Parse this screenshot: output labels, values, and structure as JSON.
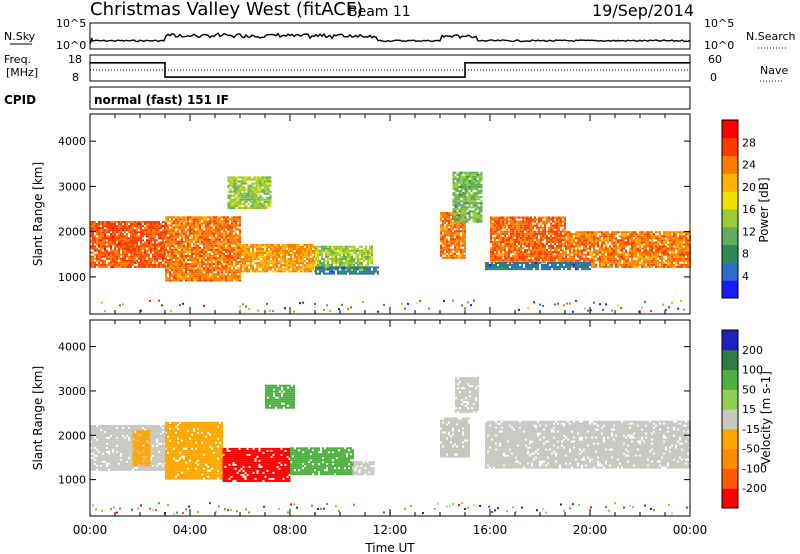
{
  "header": {
    "title": "Christmas Valley West (fitACF)",
    "beam": "Beam 11",
    "date": "19/Sep/2014"
  },
  "scan": {
    "nsky_label": "N.Sky",
    "nsky_top": "10^5",
    "nsky_bottom": "10^0",
    "nsearch_label": "N.Search",
    "nsearch_top": "10^5",
    "nsearch_bottom": "10^0",
    "freq_label": "Freq.",
    "freq_unit": "[MHz]",
    "freq_top": "18",
    "freq_bottom": "8",
    "nave_label": "Nave",
    "nave_top": "60",
    "nave_bottom": "0",
    "cpid_label": "CPID",
    "cpid_value": "normal (fast) 151 IF"
  },
  "colors": {
    "power_scale": [
      "#1a1aff",
      "#2d6cc8",
      "#2e8b57",
      "#5fae5f",
      "#9acd32",
      "#f0e000",
      "#ffb000",
      "#ff7b00",
      "#ff3a00",
      "#ff0000"
    ],
    "velocity_scale": [
      "#2020c0",
      "#2f7a45",
      "#4caf3f",
      "#8fd050",
      "#c8c8c0",
      "#ffa500",
      "#ff8c00",
      "#ff5a00",
      "#ff0000"
    ]
  },
  "chart_data": [
    {
      "type": "line",
      "name": "scan-parameters",
      "x": [
        0,
        3,
        3,
        15,
        15,
        24
      ],
      "series": [
        {
          "values": [
            15,
            15,
            9.5,
            9.5,
            15,
            15
          ]
        }
      ],
      "xlim": [
        0,
        24
      ]
    },
    {
      "type": "heatmap",
      "name": "power",
      "xlabel": "",
      "ylabel": "Slant Range [km]",
      "xlim": [
        0,
        24
      ],
      "ylim": [
        180,
        4600
      ],
      "yticks": [
        "1000",
        "2000",
        "3000",
        "4000"
      ],
      "colorbar_label": "Power [dB]",
      "colorbar_ticks": [
        "4",
        "8",
        "12",
        "16",
        "20",
        "24",
        "28"
      ],
      "bands": [
        {
          "x0": 0.0,
          "x1": 3.0,
          "y0": 1200,
          "y1": 2200,
          "value": 26
        },
        {
          "x0": 3.0,
          "x1": 6.0,
          "y0": 900,
          "y1": 2300,
          "value": 24
        },
        {
          "x0": 6.0,
          "x1": 9.0,
          "y0": 1100,
          "y1": 1700,
          "value": 22
        },
        {
          "x0": 9.0,
          "x1": 11.3,
          "y0": 1150,
          "y1": 1650,
          "value": 14
        },
        {
          "x0": 14.0,
          "x1": 15.0,
          "y0": 1400,
          "y1": 2400,
          "value": 24
        },
        {
          "x0": 16.0,
          "x1": 19.0,
          "y0": 1300,
          "y1": 2300,
          "value": 25
        },
        {
          "x0": 19.0,
          "x1": 24.0,
          "y0": 1200,
          "y1": 2000,
          "value": 24
        },
        {
          "x0": 5.5,
          "x1": 7.2,
          "y0": 2500,
          "y1": 3200,
          "value": 14
        },
        {
          "x0": 14.5,
          "x1": 15.7,
          "y0": 2200,
          "y1": 3300,
          "value": 12
        },
        {
          "x0": 9.0,
          "x1": 11.5,
          "y0": 1050,
          "y1": 1200,
          "value": 6
        },
        {
          "x0": 15.8,
          "x1": 20.0,
          "y0": 1150,
          "y1": 1300,
          "value": 6
        }
      ]
    },
    {
      "type": "heatmap",
      "name": "velocity",
      "xlabel": "Time UT",
      "ylabel": "Slant Range [km]",
      "xlim": [
        0,
        24
      ],
      "ylim": [
        180,
        4600
      ],
      "xticks": [
        "00:00",
        "04:00",
        "08:00",
        "12:00",
        "16:00",
        "20:00",
        "00:00"
      ],
      "yticks": [
        "1000",
        "2000",
        "3000",
        "4000"
      ],
      "colorbar_label": "Velocity [m s-1]",
      "colorbar_ticks": [
        "200",
        "100",
        "50",
        "15",
        "-15",
        "-50",
        "-100",
        "-200"
      ],
      "bands": [
        {
          "x0": 0.0,
          "x1": 3.0,
          "y0": 1200,
          "y1": 2200,
          "value": 0
        },
        {
          "x0": 1.7,
          "x1": 2.4,
          "y0": 1300,
          "y1": 2100,
          "value": -40
        },
        {
          "x0": 3.0,
          "x1": 5.3,
          "y0": 1000,
          "y1": 2300,
          "value": -30
        },
        {
          "x0": 5.3,
          "x1": 8.0,
          "y0": 950,
          "y1": 1700,
          "value": -180
        },
        {
          "x0": 8.0,
          "x1": 10.5,
          "y0": 1100,
          "y1": 1700,
          "value": 60
        },
        {
          "x0": 10.5,
          "x1": 11.3,
          "y0": 1100,
          "y1": 1400,
          "value": 0
        },
        {
          "x0": 14.0,
          "x1": 15.2,
          "y0": 1500,
          "y1": 2400,
          "value": 0
        },
        {
          "x0": 15.8,
          "x1": 24.0,
          "y0": 1250,
          "y1": 2300,
          "value": 0
        },
        {
          "x0": 7.0,
          "x1": 8.2,
          "y0": 2600,
          "y1": 3100,
          "value": 40
        },
        {
          "x0": 14.6,
          "x1": 15.5,
          "y0": 2500,
          "y1": 3300,
          "value": 0
        }
      ]
    }
  ]
}
